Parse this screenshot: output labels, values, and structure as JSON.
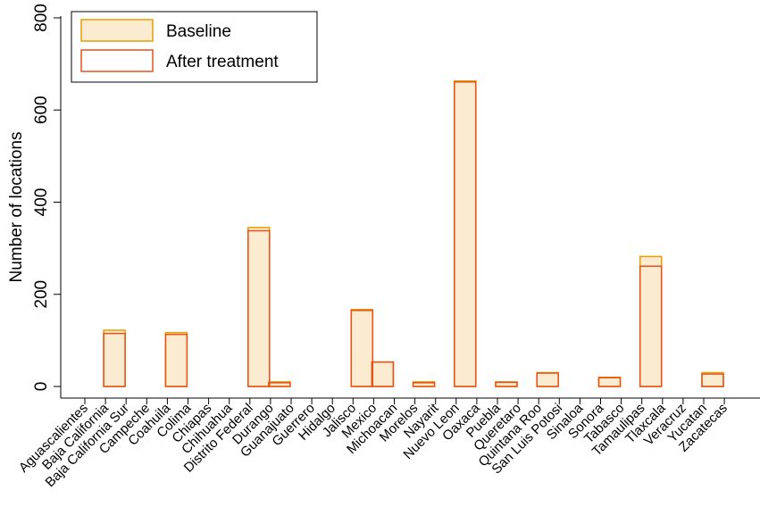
{
  "chart_data": {
    "type": "bar",
    "title": "",
    "xlabel": "",
    "ylabel": "Number of locations",
    "ylim": [
      0,
      800
    ],
    "yticks": [
      0,
      200,
      400,
      600,
      800
    ],
    "legend_position": "top-left",
    "grid": false,
    "categories": [
      "Aguascalientes",
      "Baja California",
      "Baja California Sur",
      "Campeche",
      "Coahuila",
      "Colima",
      "Chiapas",
      "Chihuahua",
      "Distrito Federal",
      "Durango",
      "Guanajuato",
      "Guerrero",
      "Hidalgo",
      "Jalisco",
      "Mexico",
      "Michoacan",
      "Morelos",
      "Nayarit",
      "Nuevo Leon",
      "Oaxaca",
      "Puebla",
      "Queretaro",
      "Quintana Roo",
      "San Luis Potosi",
      "Sinaloa",
      "Sonora",
      "Tabasco",
      "Tamaulipas",
      "Tlaxcala",
      "Veracruz",
      "Yucatan",
      "Zacatecas"
    ],
    "series": [
      {
        "name": "Baseline",
        "color": "#E69F00",
        "fill": "#FBEBD0",
        "values": [
          0,
          122,
          0,
          0,
          117,
          0,
          0,
          0,
          345,
          10,
          0,
          0,
          0,
          167,
          53,
          0,
          10,
          0,
          663,
          0,
          10,
          0,
          30,
          0,
          0,
          20,
          0,
          282,
          0,
          0,
          30,
          0
        ]
      },
      {
        "name": "After treatment",
        "color": "#E8511A",
        "fill": "none",
        "values": [
          0,
          115,
          0,
          0,
          113,
          0,
          0,
          0,
          338,
          8,
          0,
          0,
          0,
          165,
          53,
          0,
          8,
          0,
          661,
          0,
          9,
          0,
          29,
          0,
          0,
          19,
          0,
          261,
          0,
          0,
          27,
          0
        ]
      }
    ]
  }
}
